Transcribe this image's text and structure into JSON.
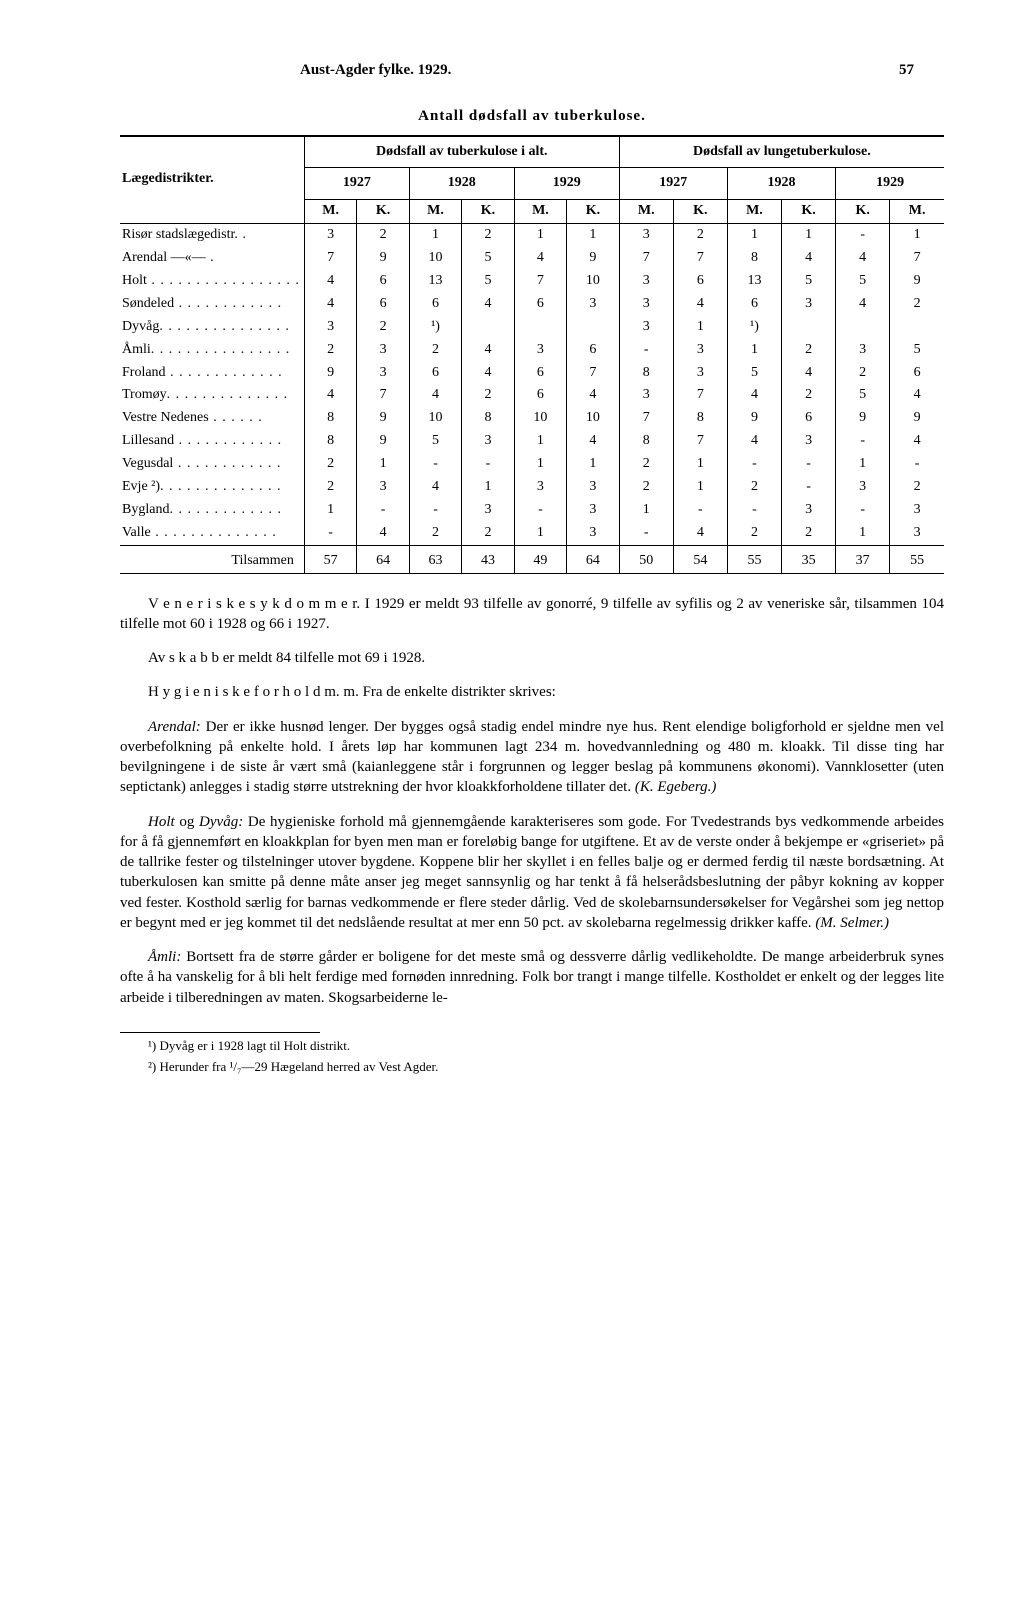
{
  "header": {
    "title": "Aust-Agder fylke.  1929.",
    "page": "57"
  },
  "table": {
    "title": "Antall dødsfall av tuberkulose.",
    "group_a": "Dødsfall av tuberkulose i alt.",
    "group_b": "Dødsfall av lungetuberkulose.",
    "rowhead": "Lægedistrikter.",
    "years": [
      "1927",
      "1928",
      "1929",
      "1927",
      "1928",
      "1929"
    ],
    "subcols": [
      "M.",
      "K.",
      "M.",
      "K.",
      "M.",
      "K.",
      "M.",
      "K.",
      "M.",
      "K.",
      "K.",
      "M."
    ],
    "rows": [
      {
        "name": "Risør stadslægedistr.",
        "dots": " .",
        "v": [
          "3",
          "2",
          "1",
          "2",
          "1",
          "1",
          "3",
          "2",
          "1",
          "1",
          "-",
          "1"
        ]
      },
      {
        "name": "Arendal   —«—",
        "dots": "   .",
        "v": [
          "7",
          "9",
          "10",
          "5",
          "4",
          "9",
          "7",
          "7",
          "8",
          "4",
          "4",
          "7"
        ]
      },
      {
        "name": "Holt",
        "dots": " . . . . . . . . . . . . . . . . .",
        "v": [
          "4",
          "6",
          "13",
          "5",
          "7",
          "10",
          "3",
          "6",
          "13",
          "5",
          "5",
          "9"
        ]
      },
      {
        "name": "Søndeled",
        "dots": " . . . . . . . . . . . .",
        "v": [
          "4",
          "6",
          "6",
          "4",
          "6",
          "3",
          "3",
          "4",
          "6",
          "3",
          "4",
          "2"
        ]
      },
      {
        "name": "Dyvåg",
        "dots": ". . . . . . . . . . . . . . .",
        "v": [
          "3",
          "2",
          "¹)",
          "",
          "",
          "",
          "3",
          "1",
          "¹)",
          "",
          "",
          ""
        ]
      },
      {
        "name": "Åmli",
        "dots": ". . . . . . . . . . . . . . . .",
        "v": [
          "2",
          "3",
          "2",
          "4",
          "3",
          "6",
          "-",
          "3",
          "1",
          "2",
          "3",
          "5"
        ]
      },
      {
        "name": "Froland",
        "dots": " . . . . . . . . . . . . .",
        "v": [
          "9",
          "3",
          "6",
          "4",
          "6",
          "7",
          "8",
          "3",
          "5",
          "4",
          "2",
          "6"
        ]
      },
      {
        "name": "Tromøy",
        "dots": ". . . . . . . . . . . . . .",
        "v": [
          "4",
          "7",
          "4",
          "2",
          "6",
          "4",
          "3",
          "7",
          "4",
          "2",
          "5",
          "4"
        ]
      },
      {
        "name": "Vestre Nedenes",
        "dots": " . . . . . .",
        "v": [
          "8",
          "9",
          "10",
          "8",
          "10",
          "10",
          "7",
          "8",
          "9",
          "6",
          "9",
          "9"
        ]
      },
      {
        "name": "Lillesand",
        "dots": " . . . . . . . . . . . .",
        "v": [
          "8",
          "9",
          "5",
          "3",
          "1",
          "4",
          "8",
          "7",
          "4",
          "3",
          "-",
          "4"
        ]
      },
      {
        "name": "Vegusdal",
        "dots": " . . . . . . . . . . . .",
        "v": [
          "2",
          "1",
          "-",
          "-",
          "1",
          "1",
          "2",
          "1",
          "-",
          "-",
          "1",
          "-"
        ]
      },
      {
        "name": "Evje ²)",
        "dots": ". . . . . . . . .    . . . . .",
        "v": [
          "2",
          "3",
          "4",
          "1",
          "3",
          "3",
          "2",
          "1",
          "2",
          "-",
          "3",
          "2"
        ]
      },
      {
        "name": "Bygland",
        "dots": ". . . . . . . . . . . . .",
        "v": [
          "1",
          "-",
          "-",
          "3",
          "-",
          "3",
          "1",
          "-",
          "-",
          "3",
          "-",
          "3"
        ]
      },
      {
        "name": "Valle",
        "dots": " . . . . . . . . . . . . . .",
        "v": [
          "-",
          "4",
          "2",
          "2",
          "1",
          "3",
          "-",
          "4",
          "2",
          "2",
          "1",
          "3"
        ]
      }
    ],
    "sum_label": "Tilsammen",
    "sum": [
      "57",
      "64",
      "63",
      "43",
      "49",
      "64",
      "50",
      "54",
      "55",
      "35",
      "37",
      "55"
    ]
  },
  "paras": {
    "p1": "V e n e r i s k e  s y k d o m m e r.  I 1929 er meldt 93 tilfelle av gonorré, 9 tilfelle av syfilis og 2 av veneriske sår, tilsammen 104 tilfelle mot 60 i 1928 og 66 i 1927.",
    "p2": "Av  s k a b b  er meldt 84 tilfelle mot 69 i 1928.",
    "p3": "H y g i e n i s k e  f o r h o l d  m. m.    Fra de enkelte distrikter skrives:",
    "p4_lead": "Arendal:",
    "p4": " Der er ikke husnød lenger. Der bygges også stadig endel mindre nye hus. Rent elendige boligforhold er sjeldne men vel overbefolkning på enkelte hold. I årets løp har kommunen lagt 234 m. hovedvannledning og 480 m. kloakk. Til disse ting har bevilgningene i de siste år vært små (kaianleggene står i forgrunnen og legger beslag på kommunens økonomi). Vannklosetter (uten septictank) anlegges i stadig større utstrekning der hvor kloakkforholdene tillater det. ",
    "p4_sig": "(K. Egeberg.)",
    "p5_lead": "Holt",
    "p5_mid": " og ",
    "p5_lead2": "Dyvåg:",
    "p5": " De hygieniske forhold må gjennemgående karakteriseres som gode. For Tvedestrands bys vedkommende arbeides for å få gjennemført en kloakkplan for byen men man er foreløbig bange for utgiftene. Et av de verste onder å bekjempe er «griseriet» på de tallrike fester og tilstelninger utover bygdene. Koppene blir her skyllet i en felles balje og er dermed ferdig til næste bordsætning. At tuberkulosen kan smitte på denne måte anser jeg meget sannsynlig og har tenkt å få helserådsbeslutning der påbyr kokning av kopper ved fester. Kosthold særlig for barnas vedkommende er flere steder dårlig. Ved de skolebarnsundersøkelser for Vegårshei som jeg nettop er begynt med er jeg kommet til det nedslående resultat at mer enn 50 pct. av skolebarna regelmessig drikker kaffe. ",
    "p5_sig": "(M. Selmer.)",
    "p6_lead": "Åmli:",
    "p6": " Bortsett fra de større gårder er boligene for det meste små og dessverre dårlig vedlikeholdte. De mange arbeiderbruk synes ofte å ha vanskelig for å bli helt ferdige med fornøden innredning. Folk bor trangt i mange tilfelle. Kostholdet er enkelt og der legges lite arbeide i tilberedningen av maten. Skogsarbeiderne le-"
  },
  "footnotes": {
    "f1": "¹) Dyvåg er i 1928 lagt til Holt distrikt.",
    "f2": "²) Herunder fra ¹/₇—29 Hægeland herred av Vest Agder."
  }
}
